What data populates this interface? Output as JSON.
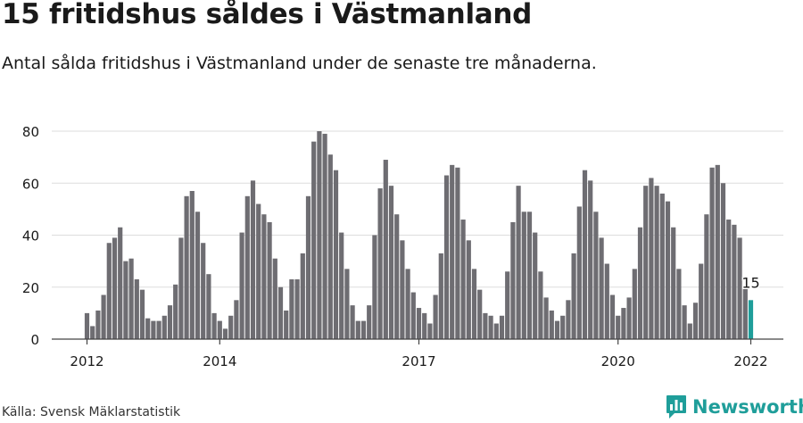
{
  "title": "15 fritidshus såldes i Västmanland",
  "subtitle": "Antal sålda fritidshus i Västmanland under de senaste tre månaderna.",
  "source": "Källa: Svensk Mäklarstatistik",
  "brand": "Newsworthy",
  "colors": {
    "bar": "#6e6d72",
    "highlight": "#1f9e9a",
    "grid": "#dddddd",
    "axis": "#444444",
    "text": "#1a1a1a"
  },
  "chart_data": {
    "type": "bar",
    "ylim": [
      0,
      80
    ],
    "yticks": [
      0,
      20,
      40,
      60,
      80
    ],
    "xlabel": "",
    "ylabel": "",
    "grid": true,
    "x_tick_labels": [
      {
        "label": "2012",
        "index": 0
      },
      {
        "label": "2014",
        "index": 24
      },
      {
        "label": "2017",
        "index": 60
      },
      {
        "label": "2020",
        "index": 96
      },
      {
        "label": "2022",
        "index": 120
      }
    ],
    "values": [
      10,
      5,
      11,
      17,
      37,
      39,
      43,
      30,
      31,
      23,
      19,
      8,
      7,
      7,
      9,
      13,
      21,
      39,
      55,
      57,
      49,
      37,
      25,
      10,
      7,
      4,
      9,
      15,
      41,
      55,
      61,
      52,
      48,
      45,
      31,
      20,
      11,
      23,
      23,
      33,
      55,
      76,
      80,
      79,
      71,
      65,
      41,
      27,
      13,
      7,
      7,
      13,
      40,
      58,
      69,
      59,
      48,
      38,
      27,
      18,
      12,
      10,
      6,
      17,
      33,
      63,
      67,
      66,
      46,
      38,
      27,
      19,
      10,
      9,
      6,
      9,
      26,
      45,
      59,
      49,
      49,
      41,
      26,
      16,
      11,
      7,
      9,
      15,
      33,
      51,
      65,
      61,
      49,
      39,
      29,
      17,
      9,
      12,
      16,
      27,
      43,
      59,
      62,
      59,
      56,
      53,
      43,
      27,
      13,
      6,
      14,
      29,
      48,
      66,
      67,
      60,
      46,
      44,
      39,
      20,
      15
    ],
    "highlight_index": 120,
    "annotation": {
      "text": "15",
      "index": 120
    }
  }
}
